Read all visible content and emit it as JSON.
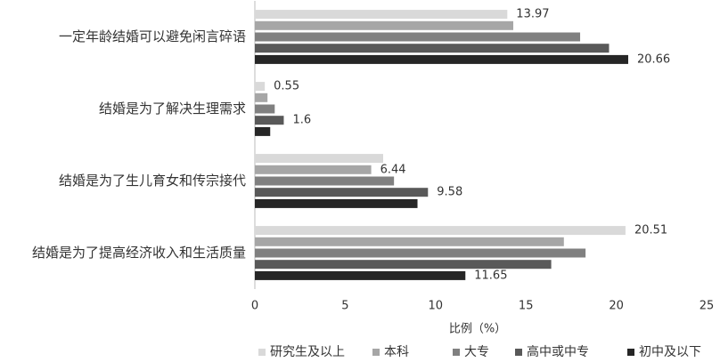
{
  "chart_data": {
    "type": "hbar",
    "categories": [
      "一定年龄结婚可以避免闲言碎语",
      "结婚是为了解决生理需求",
      "结婚是为了生儿育女和传宗接代",
      "结婚是为了提高经济收入和生活质量"
    ],
    "series": [
      {
        "name": "研究生及以上",
        "color": "#d9d9d9",
        "values": [
          13.97,
          0.55,
          7.1,
          20.51
        ],
        "value_labels": [
          "13.97",
          "0.55",
          null,
          "20.51"
        ]
      },
      {
        "name": "本科",
        "color": "#a6a6a6",
        "values": [
          14.3,
          0.7,
          6.44,
          17.1
        ],
        "value_labels": [
          null,
          null,
          "6.44",
          null
        ]
      },
      {
        "name": "大专",
        "color": "#808080",
        "values": [
          18.0,
          1.1,
          7.7,
          18.3
        ],
        "value_labels": [
          null,
          null,
          null,
          null
        ]
      },
      {
        "name": "高中或中专",
        "color": "#595959",
        "values": [
          19.6,
          1.6,
          9.58,
          16.4
        ],
        "value_labels": [
          null,
          "1.6",
          "9.58",
          null
        ]
      },
      {
        "name": "初中及以下",
        "color": "#262626",
        "values": [
          20.66,
          0.85,
          9.0,
          11.65
        ],
        "value_labels": [
          "20.66",
          null,
          null,
          "11.65"
        ]
      }
    ],
    "xlabel": "比例（%）",
    "xlim": [
      0,
      25
    ],
    "xticks": [
      0,
      5,
      10,
      15,
      20,
      25
    ]
  }
}
